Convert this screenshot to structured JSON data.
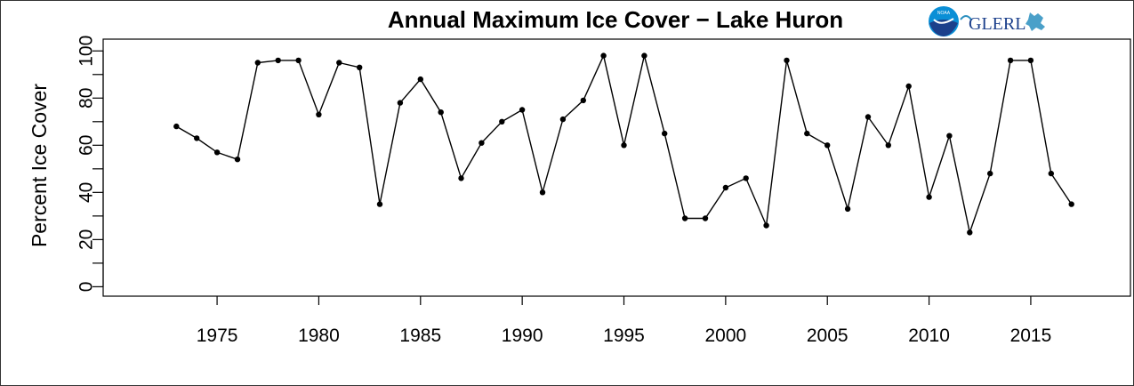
{
  "chart_data": {
    "type": "line",
    "title": "Annual Maximum Ice Cover − Lake Huron",
    "xlabel": "",
    "ylabel": "Percent Ice Cover",
    "xlim": [
      1969.4,
      2019.9
    ],
    "ylim": [
      -4,
      105
    ],
    "x_ticks": [
      1975,
      1980,
      1985,
      1990,
      1995,
      2000,
      2005,
      2010,
      2015
    ],
    "y_ticks": [
      0,
      20,
      40,
      60,
      80,
      100
    ],
    "y_minor_ticks": [
      10,
      30,
      50,
      70,
      90
    ],
    "grid": false,
    "x": [
      1973,
      1974,
      1975,
      1976,
      1977,
      1978,
      1979,
      1980,
      1981,
      1982,
      1983,
      1984,
      1985,
      1986,
      1987,
      1988,
      1989,
      1990,
      1991,
      1992,
      1993,
      1994,
      1995,
      1996,
      1997,
      1998,
      1999,
      2000,
      2001,
      2002,
      2003,
      2004,
      2005,
      2006,
      2007,
      2008,
      2009,
      2010,
      2011,
      2012,
      2013,
      2014,
      2015,
      2016,
      2017
    ],
    "series": [
      {
        "values": [
          68,
          63,
          57,
          54,
          95,
          96,
          96,
          73,
          95,
          93,
          35,
          78,
          88,
          74,
          46,
          61,
          70,
          75,
          40,
          71,
          79,
          98,
          60,
          98,
          65,
          29,
          29,
          42,
          46,
          26,
          96,
          65,
          60,
          33,
          72,
          60,
          85,
          38,
          64,
          23,
          48,
          96,
          96,
          48,
          35
        ]
      }
    ]
  },
  "logo": {
    "noaa_text": "NOAA",
    "glerl_text": "GLERL"
  },
  "colors": {
    "line": "#000000",
    "noaa_blue": "#0a8fd6",
    "noaa_navy": "#1b3f8b",
    "glerl_teal": "#2a8fbf"
  }
}
